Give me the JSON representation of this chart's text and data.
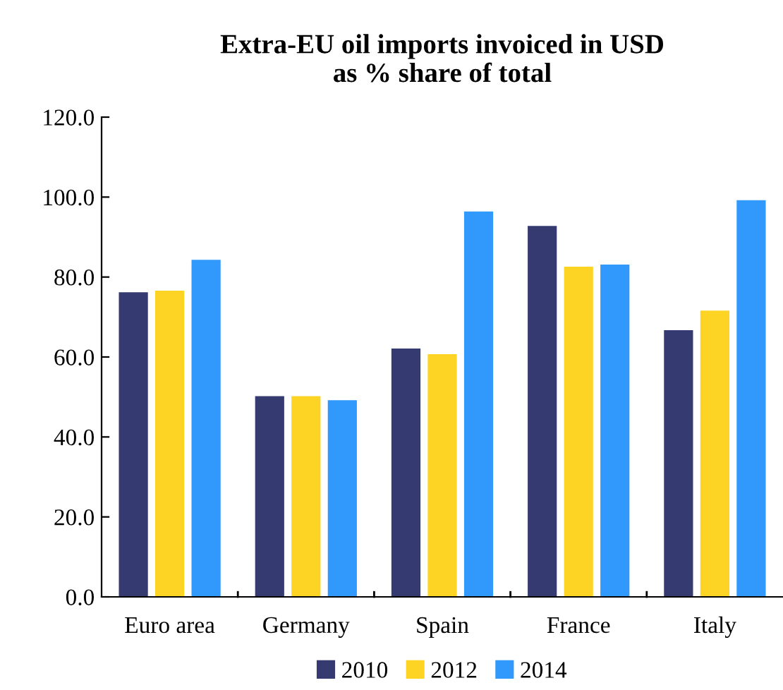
{
  "chart_data": {
    "type": "bar",
    "title": "Extra-EU oil imports invoiced in USD\nas % share of total",
    "categories": [
      "Euro area",
      "Germany",
      "Spain",
      "France",
      "Italy"
    ],
    "series": [
      {
        "name": "2010",
        "color": "#353a70",
        "values": [
          76.2,
          50.2,
          62.1,
          92.8,
          66.7
        ]
      },
      {
        "name": "2012",
        "color": "#fed424",
        "values": [
          76.6,
          50.2,
          60.7,
          82.6,
          71.6
        ]
      },
      {
        "name": "2014",
        "color": "#3199fb",
        "values": [
          84.3,
          49.2,
          96.4,
          83.1,
          99.2
        ]
      }
    ],
    "ylim": [
      0,
      120
    ],
    "yticks": [
      {
        "value": 0,
        "label": "0.0"
      },
      {
        "value": 20,
        "label": "20.0"
      },
      {
        "value": 40,
        "label": "40.0"
      },
      {
        "value": 60,
        "label": "60.0"
      },
      {
        "value": 80,
        "label": "80.0"
      },
      {
        "value": 100,
        "label": "100.0"
      },
      {
        "value": 120,
        "label": "120.0"
      }
    ],
    "grid": false,
    "legend": "bottom"
  }
}
